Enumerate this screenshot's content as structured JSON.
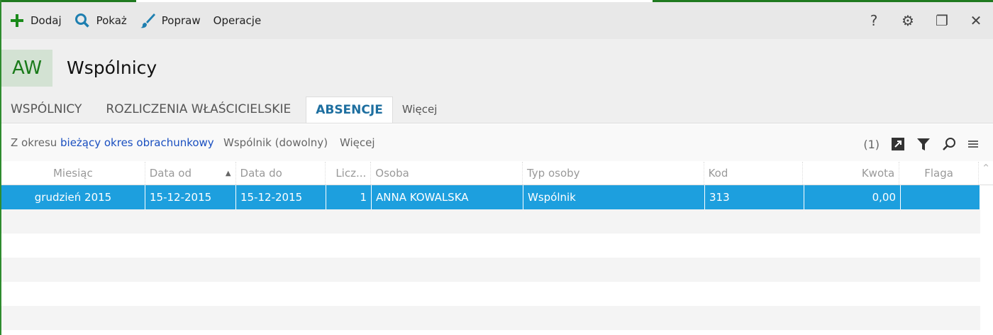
{
  "toolbar": {
    "add": "Dodaj",
    "show": "Pokaż",
    "edit": "Popraw",
    "operations": "Operacje",
    "help": "?"
  },
  "header": {
    "logo": "AW",
    "title": "Wspólnicy"
  },
  "tabs": [
    "WSPÓLNICY",
    "ROZLICZENIA WŁAŚCICIELSKIE",
    "ABSENCJE",
    "Więcej"
  ],
  "filter": {
    "period_label": "Z okresu",
    "period_value": "bieżący okres obrachunkowy",
    "partner": "Wspólnik (dowolny)",
    "more": "Więcej",
    "count": "(1)"
  },
  "columns": [
    "Miesiąc",
    "Data od",
    "Data do",
    "Licz...",
    "Osoba",
    "Typ osoby",
    "Kod",
    "Kwota",
    "Flaga"
  ],
  "rows": [
    [
      "grudzień 2015",
      "15-12-2015",
      "15-12-2015",
      "1",
      "ANNA KOWALSKA",
      "Wspólnik",
      "313",
      "0,00",
      ""
    ]
  ],
  "colors": {
    "accent": "#1d9fde",
    "brand": "#1a7a1a"
  }
}
